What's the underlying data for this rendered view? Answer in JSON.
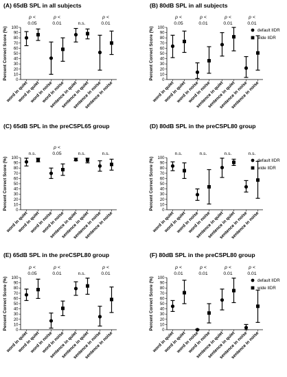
{
  "categories": [
    "word in quiet",
    "word in noise",
    "sentence in quiet",
    "sentence in noise"
  ],
  "legend": [
    "default IIDR",
    "wide IIDR"
  ],
  "colors": {
    "marks": "#000000",
    "axis": "#000000",
    "background": "#ffffff"
  },
  "chart_data": [
    {
      "type": "errorbar",
      "panel": "A",
      "title": "(A)  65dB SPL in all subjects",
      "ylabel": "Percent Correct Score (%)",
      "ylim": [
        0,
        100
      ],
      "yticks": [
        0,
        10,
        20,
        30,
        40,
        50,
        60,
        70,
        80,
        90,
        100
      ],
      "categories": [
        "word in quiet",
        "word in noise",
        "sentence in quiet",
        "sentence in noise"
      ],
      "series": [
        {
          "name": "default IIDR",
          "marker": "circle",
          "values": [
            80,
            41,
            86,
            52
          ],
          "lower": [
            65,
            10,
            72,
            18
          ],
          "upper": [
            92,
            72,
            98,
            85
          ]
        },
        {
          "name": "wide IIDR",
          "marker": "square",
          "values": [
            86,
            58,
            88,
            70
          ],
          "lower": [
            75,
            35,
            78,
            48
          ],
          "upper": [
            97,
            80,
            97,
            93
          ]
        }
      ],
      "annotations": [
        {
          "p": "p <",
          "value": "0.05"
        },
        {
          "p": "p <",
          "value": "0.01"
        },
        {
          "p": "",
          "value": "n.s."
        },
        {
          "p": "p <",
          "value": "0.01"
        }
      ],
      "legend": false
    },
    {
      "type": "errorbar",
      "panel": "B",
      "title": "(B)  80dB SPL in all subjects",
      "ylabel": "Percent Correct Score (%)",
      "ylim": [
        0,
        100
      ],
      "yticks": [
        0,
        10,
        20,
        30,
        40,
        50,
        60,
        70,
        80,
        90,
        100
      ],
      "categories": [
        "word in quiet",
        "word in noise",
        "sentence in quiet",
        "sentence in noise"
      ],
      "series": [
        {
          "name": "default IIDR",
          "marker": "circle",
          "values": [
            64,
            14,
            67,
            22
          ],
          "lower": [
            42,
            2,
            45,
            4
          ],
          "upper": [
            85,
            32,
            90,
            44
          ]
        },
        {
          "name": "wide IIDR",
          "marker": "square",
          "values": [
            73,
            36,
            82,
            51
          ],
          "lower": [
            52,
            12,
            55,
            18
          ],
          "upper": [
            93,
            63,
            100,
            84
          ]
        }
      ],
      "annotations": [
        {
          "p": "p <",
          "value": "0.05"
        },
        {
          "p": "p <",
          "value": "0.01"
        },
        {
          "p": "p <",
          "value": "0.01"
        },
        {
          "p": "p <",
          "value": "0.01"
        }
      ],
      "legend": true
    },
    {
      "type": "errorbar",
      "panel": "C",
      "title": "(C)  65dB SPL in the preCSPL65 group",
      "ylabel": "Percent Correct Score (%)",
      "ylim": [
        0,
        100
      ],
      "yticks": [
        0,
        10,
        20,
        30,
        40,
        50,
        60,
        70,
        80,
        90,
        100
      ],
      "categories": [
        "word in quiet",
        "word in noise",
        "sentence in quiet",
        "sentence in noise"
      ],
      "series": [
        {
          "name": "default IIDR",
          "marker": "circle",
          "values": [
            92,
            70,
            96,
            84
          ],
          "lower": [
            84,
            60,
            94,
            74
          ],
          "upper": [
            99,
            80,
            99,
            94
          ]
        },
        {
          "name": "wide IIDR",
          "marker": "square",
          "values": [
            96,
            77,
            95,
            87
          ],
          "lower": [
            92,
            66,
            90,
            76
          ],
          "upper": [
            99,
            88,
            99,
            97
          ]
        }
      ],
      "annotations": [
        {
          "p": "",
          "value": "n.s."
        },
        {
          "p": "p <",
          "value": "0.05"
        },
        {
          "p": "",
          "value": "n.s."
        },
        {
          "p": "",
          "value": "n.s."
        }
      ],
      "legend": false
    },
    {
      "type": "errorbar",
      "panel": "D",
      "title": "(D)  80dB SPL in the preCSPL80 group",
      "ylabel": "Percent Correct Score (%)",
      "ylim": [
        0,
        100
      ],
      "yticks": [
        0,
        10,
        20,
        30,
        40,
        50,
        60,
        70,
        80,
        90,
        100
      ],
      "categories": [
        "word in quiet",
        "word in noise",
        "sentence in quiet",
        "sentence in noise"
      ],
      "series": [
        {
          "name": "default IIDR",
          "marker": "circle",
          "values": [
            84,
            29,
            81,
            44
          ],
          "lower": [
            75,
            18,
            62,
            34
          ],
          "upper": [
            92,
            40,
            99,
            56
          ]
        },
        {
          "name": "wide IIDR",
          "marker": "square",
          "values": [
            75,
            44,
            91,
            57
          ],
          "lower": [
            60,
            11,
            85,
            22
          ],
          "upper": [
            90,
            77,
            97,
            93
          ]
        }
      ],
      "annotations": [
        {
          "p": "",
          "value": "n.s."
        },
        {
          "p": "",
          "value": "n.s."
        },
        {
          "p": "",
          "value": "n.s."
        },
        {
          "p": "",
          "value": "n.s."
        }
      ],
      "legend": true
    },
    {
      "type": "errorbar",
      "panel": "E",
      "title": "(E)  65dB SPL in the preCSPL80 group",
      "ylabel": "Percent Correct Score (%)",
      "ylim": [
        0,
        100
      ],
      "yticks": [
        0,
        10,
        20,
        30,
        40,
        50,
        60,
        70,
        80,
        90,
        100
      ],
      "categories": [
        "word in quiet",
        "word in noise",
        "sentence in quiet",
        "sentence in noise"
      ],
      "series": [
        {
          "name": "default IIDR",
          "marker": "circle",
          "values": [
            67,
            17,
            79,
            25
          ],
          "lower": [
            56,
            3,
            66,
            7
          ],
          "upper": [
            78,
            32,
            92,
            45
          ]
        },
        {
          "name": "wide IIDR",
          "marker": "square",
          "values": [
            77,
            41,
            84,
            58
          ],
          "lower": [
            60,
            27,
            68,
            33
          ],
          "upper": [
            97,
            55,
            99,
            82
          ]
        }
      ],
      "annotations": [
        {
          "p": "p <",
          "value": "0.05"
        },
        {
          "p": "p <",
          "value": "0.01"
        },
        {
          "p": "",
          "value": "n.s."
        },
        {
          "p": "p <",
          "value": "0.01"
        }
      ],
      "legend": false
    },
    {
      "type": "errorbar",
      "panel": "F",
      "title": "(F)  80dB SPL in the preCSPL80 group",
      "ylabel": "Percent Correct Score (%)",
      "ylim": [
        0,
        100
      ],
      "yticks": [
        0,
        10,
        20,
        30,
        40,
        50,
        60,
        70,
        80,
        90,
        100
      ],
      "categories": [
        "word in quiet",
        "word in noise",
        "sentence in quiet",
        "sentence in noise"
      ],
      "series": [
        {
          "name": "default IIDR",
          "marker": "circle",
          "values": [
            45,
            0,
            57,
            4
          ],
          "lower": [
            35,
            0,
            38,
            0
          ],
          "upper": [
            56,
            1,
            78,
            10
          ]
        },
        {
          "name": "wide IIDR",
          "marker": "square",
          "values": [
            71,
            32,
            75,
            45
          ],
          "lower": [
            50,
            13,
            52,
            14
          ],
          "upper": [
            95,
            50,
            99,
            76
          ]
        }
      ],
      "annotations": [
        {
          "p": "p <",
          "value": "0.01"
        },
        {
          "p": "p <",
          "value": "0.01"
        },
        {
          "p": "p <",
          "value": "0.01"
        },
        {
          "p": "p <",
          "value": "0.01"
        }
      ],
      "legend": true
    }
  ]
}
